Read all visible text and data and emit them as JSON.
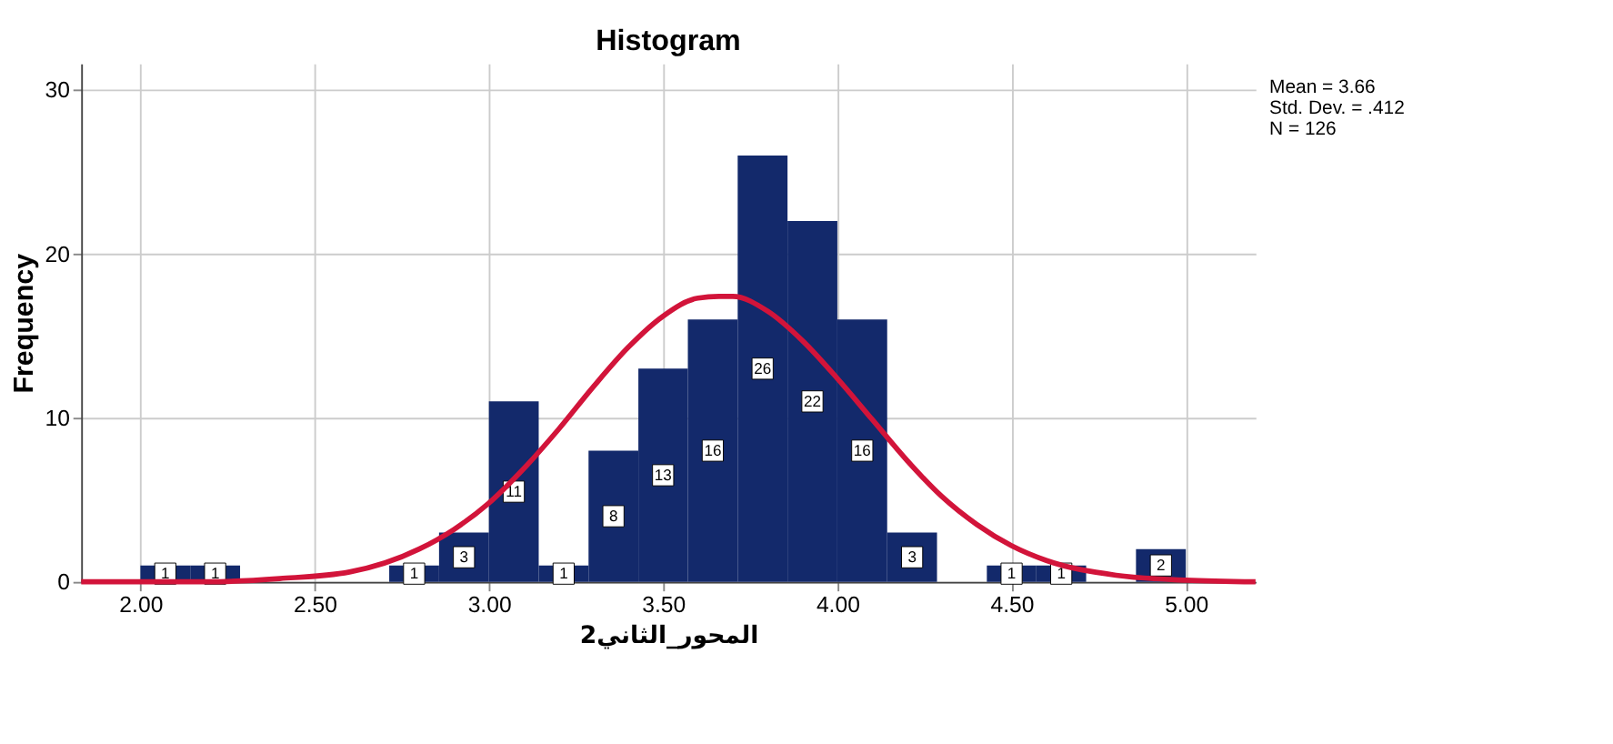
{
  "chart_data": {
    "type": "histogram",
    "title": "Histogram",
    "xlabel": "المحور_الثاني2",
    "ylabel": "Frequency",
    "bins": [
      2,
      2.143,
      2.286,
      2.429,
      2.571,
      2.714,
      2.857,
      3,
      3.143,
      3.286,
      3.429,
      3.571,
      3.714,
      3.857,
      4,
      4.143,
      4.286,
      4.429,
      4.571,
      4.714,
      4.857,
      5
    ],
    "values": [
      1,
      1,
      0,
      0,
      0,
      1,
      3,
      11,
      1,
      8,
      13,
      16,
      26,
      22,
      16,
      3,
      0,
      1,
      1,
      0,
      2
    ],
    "value_labels": [
      "1",
      "1",
      null,
      null,
      null,
      "1",
      "3",
      "11",
      "1",
      "8",
      "13",
      "16",
      "26",
      "22",
      "16",
      "3",
      null,
      "1",
      "1",
      null,
      "2"
    ],
    "color": "#13296b",
    "series": [
      {
        "type": "line",
        "color": "#d2143a",
        "x": [
          1.83,
          2.0,
          2.2,
          2.4,
          2.6,
          2.8,
          2.9,
          3.0,
          3.1,
          3.2,
          3.3,
          3.4,
          3.5,
          3.6,
          3.66,
          3.7,
          3.8,
          3.9,
          4.0,
          4.1,
          4.2,
          4.3,
          4.4,
          4.5,
          4.6,
          4.8,
          5.0,
          5.2
        ],
        "values": [
          0,
          0,
          0,
          0.2,
          0.6,
          2.0,
          3.2,
          4.8,
          6.9,
          9.3,
          11.9,
          14.3,
          16.2,
          17.3,
          17.4,
          17.4,
          16.5,
          14.7,
          12.4,
          9.9,
          7.4,
          5.2,
          3.5,
          2.2,
          1.3,
          0.4,
          0.1,
          0
        ]
      }
    ],
    "xlim": [
      1.83,
      5.2
    ],
    "xticks": [
      {
        "value": 2,
        "label": "2.00"
      },
      {
        "value": 2.5,
        "label": "2.50"
      },
      {
        "value": 3,
        "label": "3.00"
      },
      {
        "value": 3.5,
        "label": "3.50"
      },
      {
        "value": 4,
        "label": "4.00"
      },
      {
        "value": 4.5,
        "label": "4.50"
      },
      {
        "value": 5,
        "label": "5.00"
      }
    ],
    "ylim": [
      0,
      31.6
    ],
    "yticks": [
      0,
      10,
      20,
      30
    ],
    "grid": true,
    "annotations": [
      "Mean = 3.66",
      "Std. Dev. = .412",
      "N = 126"
    ]
  }
}
